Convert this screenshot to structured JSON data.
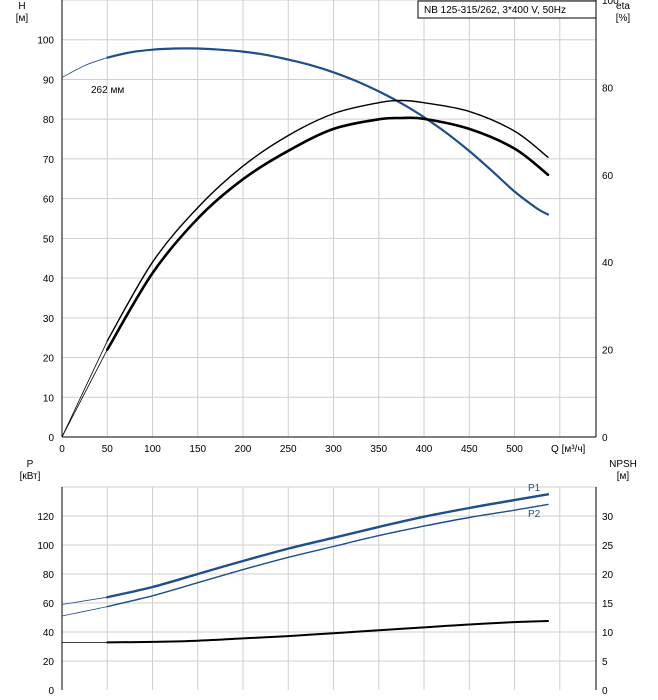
{
  "chart_data": [
    {
      "type": "line",
      "model_label": "NB 125-315/262, 3*400 V, 50Hz",
      "left_axis": {
        "title": "H",
        "unit": "[м]",
        "ylim": [
          0,
          110
        ],
        "ticks": [
          0,
          10,
          20,
          30,
          40,
          50,
          60,
          70,
          80,
          90,
          100
        ]
      },
      "right_axis": {
        "title": "eta",
        "unit": "[%]",
        "ylim": [
          0,
          100
        ],
        "ticks": [
          0,
          20,
          40,
          60,
          80,
          100
        ]
      },
      "x_axis": {
        "title": "Q",
        "unit": "[м³/ч]",
        "xlim": [
          0,
          590
        ],
        "ticks": [
          0,
          50,
          100,
          150,
          200,
          250,
          300,
          350,
          400,
          450,
          500
        ]
      },
      "curve_annotation": "262 мм",
      "series": [
        {
          "key": "head",
          "axis": "left",
          "color": "#1f4e8c",
          "x": [
            0,
            25,
            50,
            75,
            100,
            125,
            150,
            175,
            200,
            225,
            250,
            275,
            300,
            325,
            350,
            375,
            400,
            425,
            450,
            475,
            500,
            525,
            537
          ],
          "y": [
            90.5,
            93.5,
            95.5,
            96.8,
            97.5,
            97.8,
            97.8,
            97.5,
            97.0,
            96.2,
            95.0,
            93.6,
            91.8,
            89.6,
            87.0,
            84.0,
            80.5,
            76.5,
            72.0,
            67.0,
            61.8,
            57.5,
            56.0
          ]
        },
        {
          "key": "efficiency_outer",
          "axis": "right",
          "color": "#000000",
          "x": [
            0,
            50,
            100,
            150,
            200,
            250,
            300,
            350,
            375,
            400,
            450,
            500,
            537
          ],
          "y": [
            0,
            22,
            40,
            52.5,
            62,
            69,
            74,
            76.5,
            77,
            76.5,
            74.5,
            70,
            64
          ]
        },
        {
          "key": "efficiency_inner",
          "axis": "right",
          "color": "#000000",
          "x": [
            0,
            50,
            100,
            150,
            200,
            250,
            300,
            350,
            375,
            400,
            450,
            500,
            537
          ],
          "y": [
            0,
            20,
            37.5,
            50,
            59,
            65.5,
            70.5,
            72.7,
            73,
            72.8,
            70.5,
            66,
            60
          ]
        }
      ]
    },
    {
      "type": "line",
      "left_axis": {
        "title": "P",
        "unit": "[кВт]",
        "ylim": [
          0,
          140
        ],
        "ticks": [
          0,
          20,
          40,
          60,
          80,
          100,
          120
        ]
      },
      "right_axis": {
        "title": "NPSH",
        "unit": "[м]",
        "ylim": [
          0,
          35
        ],
        "ticks": [
          0,
          5,
          10,
          15,
          20,
          25,
          30
        ]
      },
      "x_axis": {
        "xlim": [
          0,
          590
        ]
      },
      "series": [
        {
          "name": "P1",
          "key": "p1",
          "axis": "left",
          "color": "#1f4e8c",
          "x": [
            0,
            50,
            100,
            150,
            200,
            250,
            300,
            350,
            400,
            450,
            500,
            537
          ],
          "y": [
            59,
            64,
            71,
            80,
            89,
            97.5,
            105,
            112.5,
            119.5,
            125.5,
            131,
            135
          ]
        },
        {
          "name": "P2",
          "key": "p2",
          "axis": "left",
          "color": "#1f4e8c",
          "x": [
            0,
            50,
            100,
            150,
            200,
            250,
            300,
            350,
            400,
            450,
            500,
            537
          ],
          "y": [
            51,
            57.5,
            65,
            74,
            83,
            91.5,
            99,
            106.5,
            113,
            119,
            124,
            128
          ]
        },
        {
          "key": "npsh",
          "axis": "right",
          "color": "#000000",
          "x": [
            0,
            50,
            100,
            150,
            200,
            250,
            300,
            350,
            400,
            450,
            500,
            537
          ],
          "y": [
            8.2,
            8.2,
            8.3,
            8.5,
            8.9,
            9.3,
            9.8,
            10.3,
            10.8,
            11.3,
            11.7,
            11.9
          ]
        }
      ]
    }
  ]
}
